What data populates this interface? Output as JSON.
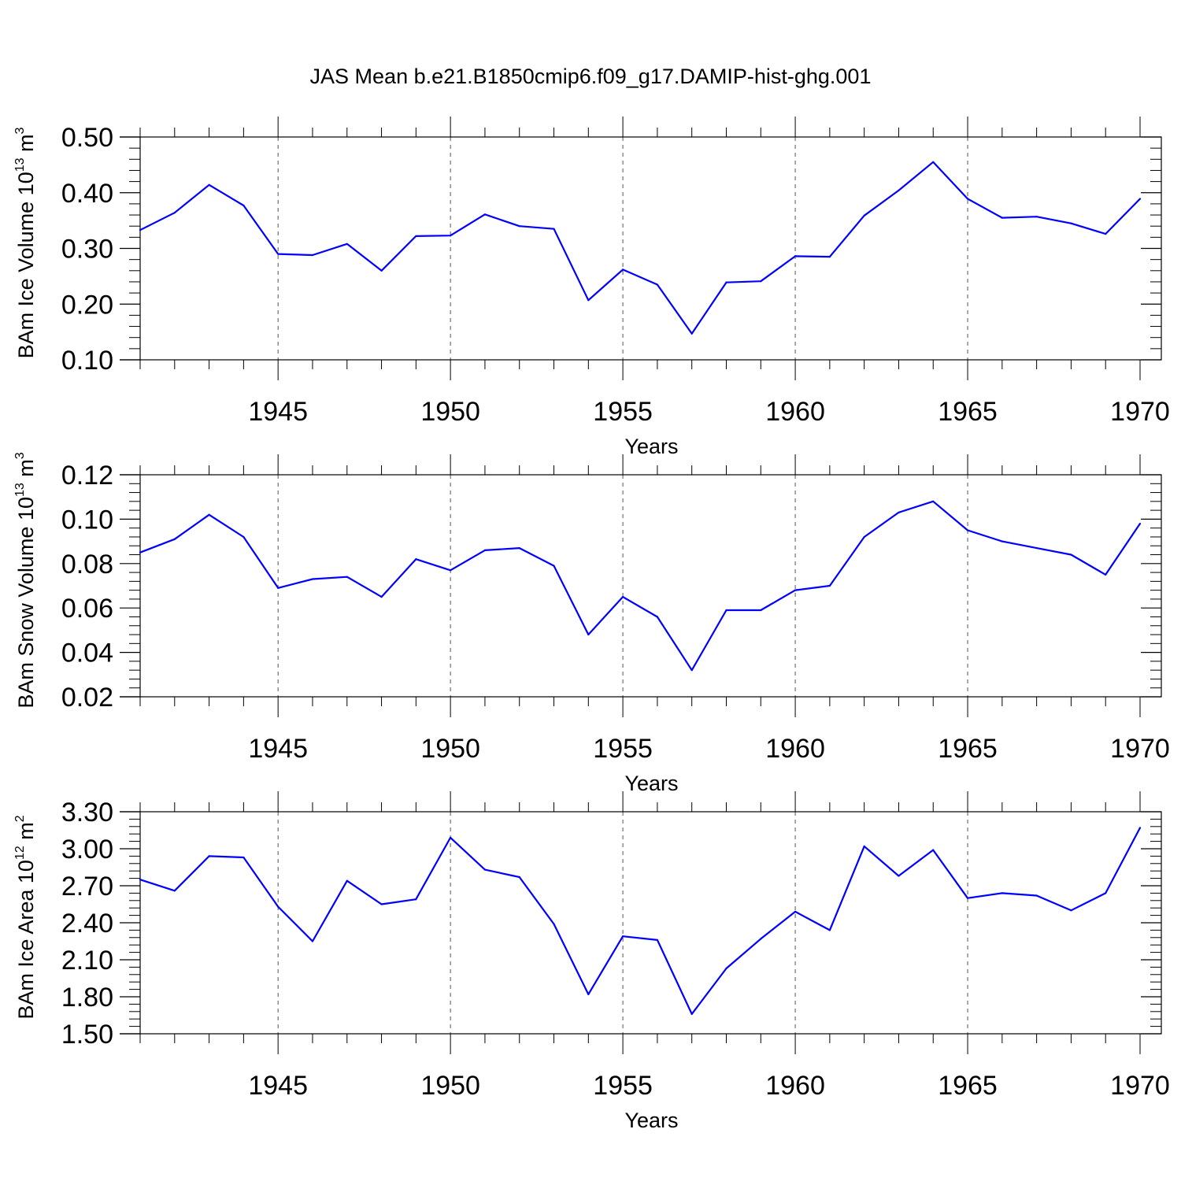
{
  "title": "JAS Mean b.e21.B1850cmip6.f09_g17.DAMIP-hist-ghg.001",
  "chart_data": [
    {
      "type": "line",
      "title": "JAS Mean b.e21.B1850cmip6.f09_g17.DAMIP-hist-ghg.001",
      "xlabel": "Years",
      "ylabel_text": "BAm Ice Volume 10",
      "ylabel_exp": "13",
      "ylabel_unit": " m",
      "ylabel_unit_exp": "3",
      "xlim": [
        1941,
        1970
      ],
      "ylim": [
        0.1,
        0.5
      ],
      "yticks": [
        0.1,
        0.2,
        0.3,
        0.4,
        0.5
      ],
      "ytick_labels": [
        "0.10",
        "0.20",
        "0.30",
        "0.40",
        "0.50"
      ],
      "xticks": [
        1945,
        1950,
        1955,
        1960,
        1965,
        1970
      ],
      "xtick_labels": [
        "1945",
        "1950",
        "1955",
        "1960",
        "1965",
        "1970"
      ],
      "color": "#0000ff",
      "x": [
        1941,
        1942,
        1943,
        1944,
        1945,
        1946,
        1947,
        1948,
        1949,
        1950,
        1951,
        1952,
        1953,
        1954,
        1955,
        1956,
        1957,
        1958,
        1959,
        1960,
        1961,
        1962,
        1963,
        1964,
        1965,
        1966,
        1967,
        1968,
        1969,
        1970
      ],
      "y": [
        0.333,
        0.364,
        0.414,
        0.377,
        0.29,
        0.288,
        0.308,
        0.26,
        0.322,
        0.323,
        0.361,
        0.34,
        0.335,
        0.207,
        0.262,
        0.235,
        0.147,
        0.239,
        0.241,
        0.286,
        0.285,
        0.359,
        0.404,
        0.455,
        0.389,
        0.355,
        0.357,
        0.345,
        0.326,
        0.389
      ]
    },
    {
      "type": "line",
      "xlabel": "Years",
      "ylabel_text": "BAm Snow Volume 10",
      "ylabel_exp": "13",
      "ylabel_unit": " m",
      "ylabel_unit_exp": "3",
      "xlim": [
        1941,
        1970
      ],
      "ylim": [
        0.02,
        0.12
      ],
      "yticks": [
        0.02,
        0.04,
        0.06,
        0.08,
        0.1,
        0.12
      ],
      "ytick_labels": [
        "0.02",
        "0.04",
        "0.06",
        "0.08",
        "0.10",
        "0.12"
      ],
      "xticks": [
        1945,
        1950,
        1955,
        1960,
        1965,
        1970
      ],
      "xtick_labels": [
        "1945",
        "1950",
        "1955",
        "1960",
        "1965",
        "1970"
      ],
      "color": "#0000ff",
      "x": [
        1941,
        1942,
        1943,
        1944,
        1945,
        1946,
        1947,
        1948,
        1949,
        1950,
        1951,
        1952,
        1953,
        1954,
        1955,
        1956,
        1957,
        1958,
        1959,
        1960,
        1961,
        1962,
        1963,
        1964,
        1965,
        1966,
        1967,
        1968,
        1969,
        1970
      ],
      "y": [
        0.085,
        0.091,
        0.102,
        0.092,
        0.069,
        0.073,
        0.074,
        0.065,
        0.082,
        0.077,
        0.086,
        0.087,
        0.079,
        0.048,
        0.065,
        0.056,
        0.032,
        0.059,
        0.059,
        0.068,
        0.07,
        0.092,
        0.103,
        0.108,
        0.095,
        0.09,
        0.087,
        0.084,
        0.075,
        0.098
      ]
    },
    {
      "type": "line",
      "xlabel": "Years",
      "ylabel_text": "BAm Ice Area 10",
      "ylabel_exp": "12",
      "ylabel_unit": " m",
      "ylabel_unit_exp": "2",
      "xlim": [
        1941,
        1970
      ],
      "ylim": [
        1.5,
        3.3
      ],
      "yticks": [
        1.5,
        1.8,
        2.1,
        2.4,
        2.7,
        3.0,
        3.3
      ],
      "ytick_labels": [
        "1.50",
        "1.80",
        "2.10",
        "2.40",
        "2.70",
        "3.00",
        "3.30"
      ],
      "xticks": [
        1945,
        1950,
        1955,
        1960,
        1965,
        1970
      ],
      "xtick_labels": [
        "1945",
        "1950",
        "1955",
        "1960",
        "1965",
        "1970"
      ],
      "color": "#0000ff",
      "x": [
        1941,
        1942,
        1943,
        1944,
        1945,
        1946,
        1947,
        1948,
        1949,
        1950,
        1951,
        1952,
        1953,
        1954,
        1955,
        1956,
        1957,
        1958,
        1959,
        1960,
        1961,
        1962,
        1963,
        1964,
        1965,
        1966,
        1967,
        1968,
        1969,
        1970
      ],
      "y": [
        2.75,
        2.66,
        2.94,
        2.93,
        2.53,
        2.25,
        2.74,
        2.55,
        2.59,
        3.09,
        2.83,
        2.77,
        2.39,
        1.82,
        2.29,
        2.26,
        1.66,
        2.03,
        2.27,
        2.49,
        2.34,
        3.02,
        2.78,
        2.99,
        2.6,
        2.64,
        2.62,
        2.5,
        2.64,
        3.17
      ]
    }
  ]
}
